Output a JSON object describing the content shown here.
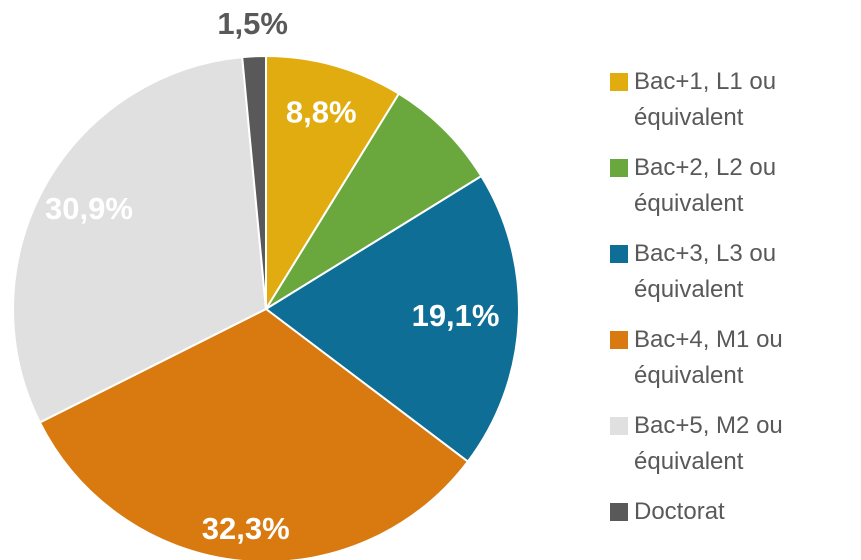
{
  "chart_data": {
    "type": "pie",
    "categories": [
      "Bac+1, L1 ou équivalent",
      "Bac+2, L2 ou équivalent",
      "Bac+3, L3 ou équivalent",
      "Bac+4, M1 ou équivalent",
      "Bac+5, M2 ou équivalent",
      "Doctorat"
    ],
    "values": [
      8.8,
      7.4,
      19.1,
      32.3,
      30.9,
      1.5
    ],
    "value_labels": [
      "8,8%",
      null,
      "19,1%",
      "32,3%",
      "30,9%",
      "1,5%"
    ],
    "colors": [
      "#e0ac10",
      "#6aa83e",
      "#0f6e96",
      "#d97a10",
      "#e0e0e0",
      "#595959"
    ],
    "legend": "right"
  }
}
